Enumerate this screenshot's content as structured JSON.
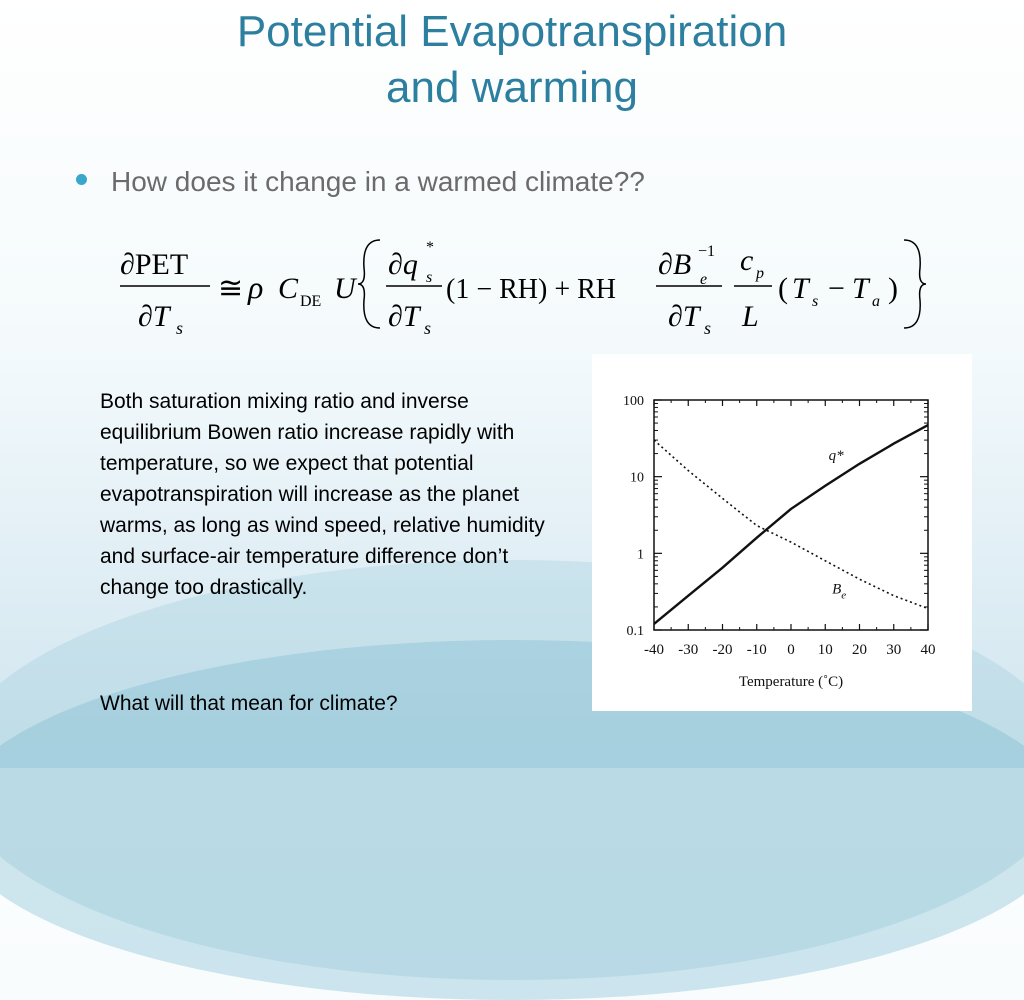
{
  "slide": {
    "title_line1": "Potential Evapotranspiration",
    "title_line2": "and warming",
    "bullet": "How does it change in a warmed climate??",
    "body": "Both saturation mixing ratio and inverse equilibrium Bowen ratio increase rapidly with temperature, so we expect that potential evapotranspiration will increase as the planet warms, as long as wind speed, relative humidity and surface-air temperature difference don’t change too drastically.",
    "question": "What will that mean for climate?",
    "accent_color": "#2d7fa0",
    "bullet_color": "#3aa6c9"
  },
  "equation": {
    "lhs_num": "∂PET",
    "lhs_den": "∂T",
    "lhs_den_sub": "s",
    "approx": "≅",
    "rho": "ρ",
    "C": "C",
    "C_sub": "DE",
    "U": "U",
    "dq": "∂q",
    "q_sup": "*",
    "q_sub": "s",
    "dT": "∂T",
    "dT_sub": "s",
    "term1": "(1 − RH) + RH",
    "dB": "∂B",
    "B_sub": "e",
    "B_sup": "−1",
    "cp": "c",
    "cp_sub": "p",
    "L": "L",
    "open_paren": "(",
    "Ts": "T",
    "Ts_sub": "s",
    "minus": "−",
    "Ta": "T",
    "Ta_sub": "a",
    "close_paren": ")"
  },
  "chart_data": {
    "type": "line",
    "xlabel": "Temperature (˚C)",
    "x_ticks": [
      "-40",
      "-30",
      "-20",
      "-10",
      "0",
      "10",
      "20",
      "30",
      "40"
    ],
    "y_ticks": [
      "0.1",
      "1",
      "10",
      "100"
    ],
    "xlim": [
      -40,
      40
    ],
    "ylim": [
      0.1,
      100
    ],
    "yscale": "log",
    "series": [
      {
        "name": "q*",
        "style": "solid",
        "x": [
          -40,
          -30,
          -20,
          -10,
          0,
          10,
          20,
          30,
          40
        ],
        "y": [
          0.12,
          0.28,
          0.65,
          1.6,
          3.8,
          7.6,
          14.7,
          27,
          47
        ]
      },
      {
        "name": "Be",
        "style": "dotted",
        "x": [
          -40,
          -30,
          -20,
          -10,
          0,
          10,
          20,
          30,
          40
        ],
        "y": [
          30,
          12,
          5.2,
          2.3,
          1.4,
          0.8,
          0.46,
          0.28,
          0.19
        ]
      }
    ],
    "series_labels": {
      "q": "q*",
      "be_main": "B",
      "be_sub": "e"
    }
  }
}
